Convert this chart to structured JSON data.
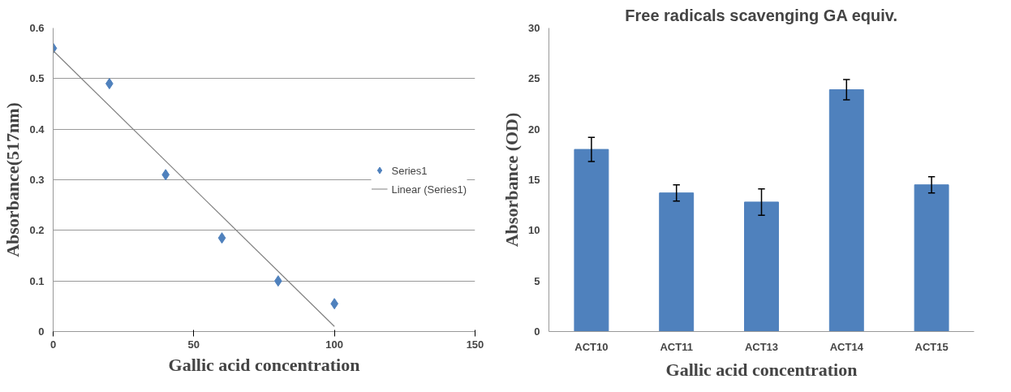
{
  "chart_data": [
    {
      "type": "scatter",
      "xlabel": "Gallic acid concentration",
      "ylabel": "Absorbance(517nm)",
      "x": [
        0,
        20,
        40,
        60,
        80,
        100
      ],
      "series": [
        {
          "name": "Series1",
          "color": "#4f81bd",
          "values": [
            0.56,
            0.49,
            0.31,
            0.185,
            0.1,
            0.055
          ],
          "marker": "diamond"
        },
        {
          "name": "Linear (Series1)",
          "type": "line",
          "color": "#808080",
          "x": [
            0,
            100
          ],
          "values": [
            0.555,
            0.01
          ],
          "marker": "none"
        }
      ],
      "xlim": [
        0,
        150
      ],
      "xticks": [
        0,
        50,
        100,
        150
      ],
      "ylim": [
        0,
        0.6
      ],
      "yticks": [
        0,
        0.1,
        0.2,
        0.3,
        0.4,
        0.5,
        0.6
      ],
      "grid": "y",
      "legend": "right"
    },
    {
      "type": "bar",
      "title": "Free radicals scavenging GA equiv.",
      "xlabel": "Gallic acid concentration",
      "ylabel": "Absorbance (OD)",
      "categories": [
        "ACT10",
        "ACT11",
        "ACT13",
        "ACT14",
        "ACT15"
      ],
      "values": [
        18,
        13.7,
        12.8,
        23.9,
        14.5
      ],
      "errors": [
        1.2,
        0.8,
        1.3,
        1.0,
        0.8
      ],
      "color": "#4f81bd",
      "ylim": [
        0,
        30
      ],
      "yticks": [
        0,
        5,
        10,
        15,
        20,
        25,
        30
      ]
    }
  ]
}
